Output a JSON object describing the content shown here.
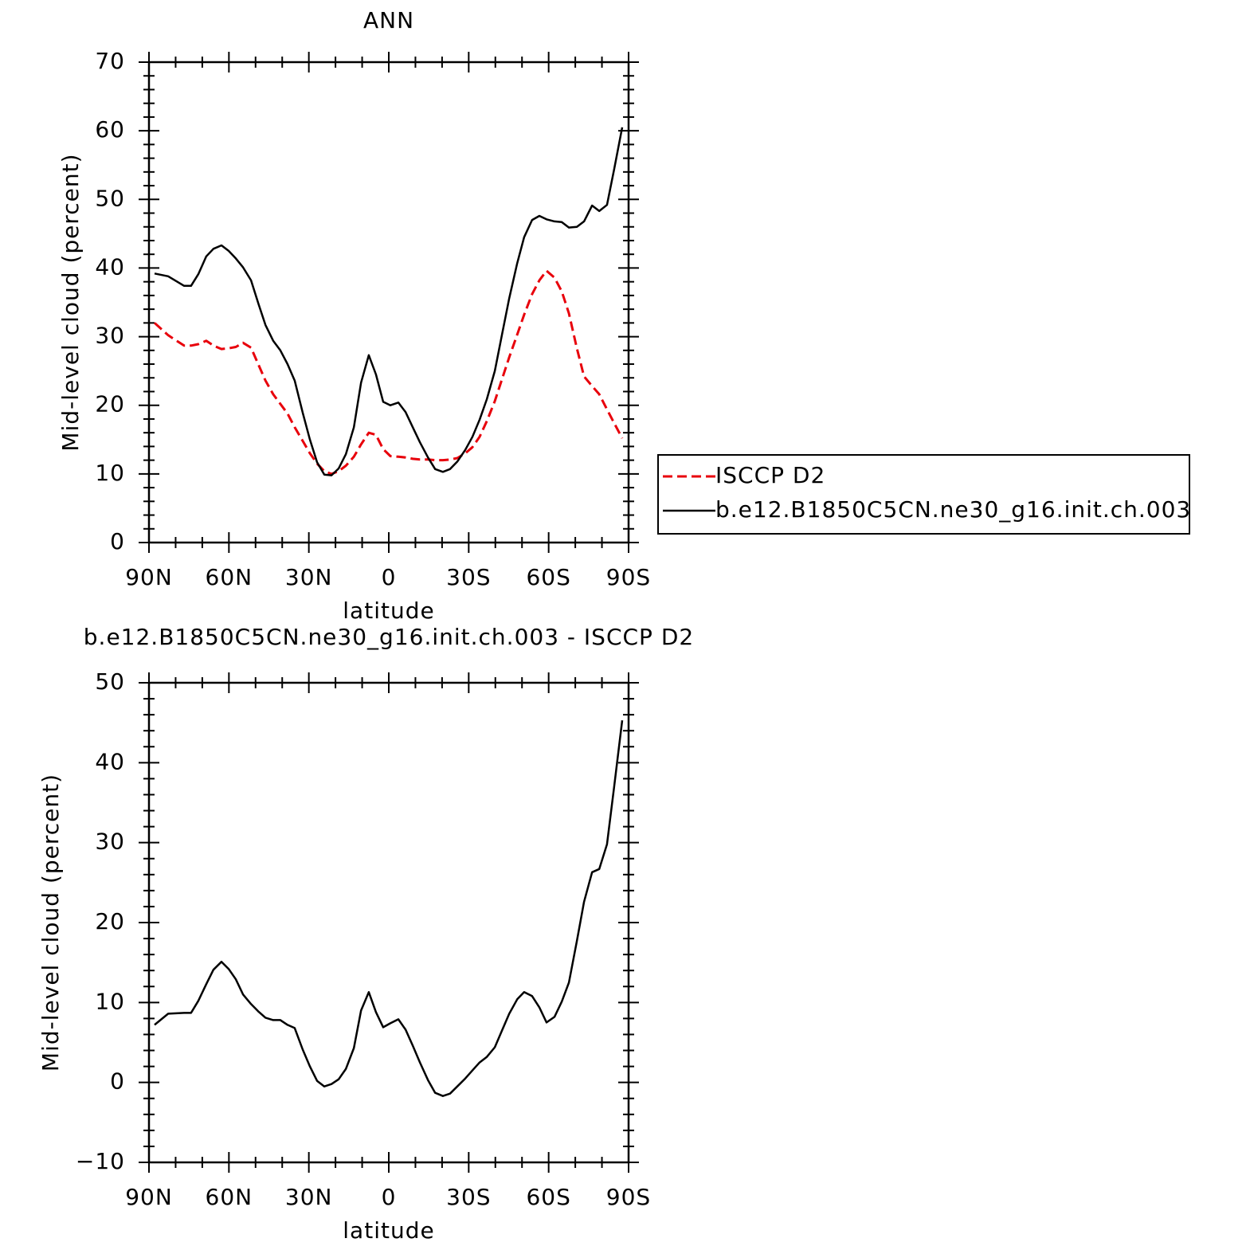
{
  "chart_data": [
    {
      "type": "line",
      "title": "ANN",
      "xlabel": "latitude",
      "ylabel": "Mid-level cloud (percent)",
      "x": [
        87.9,
        82.8,
        76.8,
        74.2,
        71.5,
        68.5,
        65.8,
        62.8,
        60.1,
        57.4,
        54.7,
        51.7,
        49.0,
        46.3,
        43.4,
        40.7,
        38.0,
        35.3,
        32.3,
        29.6,
        26.9,
        24.2,
        21.5,
        18.8,
        16.1,
        13.1,
        10.4,
        7.5,
        4.8,
        2.1,
        -0.6,
        -3.6,
        -6.3,
        -9.0,
        -11.7,
        -14.7,
        -17.4,
        -20.3,
        -23.0,
        -25.7,
        -28.7,
        -31.4,
        -34.1,
        -36.8,
        -39.8,
        -42.5,
        -45.2,
        -48.2,
        -50.8,
        -53.8,
        -56.5,
        -59.2,
        -62.2,
        -64.9,
        -67.6,
        -70.6,
        -73.3,
        -76.3,
        -79.0,
        -81.9,
        -84.6,
        -87.6
      ],
      "series": [
        {
          "name": "ISCCP D2",
          "color": "#e8000b",
          "dash": true,
          "values": [
            32.0,
            30.2,
            28.7,
            28.7,
            28.9,
            29.4,
            28.7,
            28.2,
            28.3,
            28.5,
            29.1,
            28.4,
            26.0,
            23.6,
            21.6,
            20.2,
            18.8,
            16.8,
            14.8,
            13.0,
            11.5,
            10.4,
            10.0,
            10.4,
            11.2,
            12.5,
            14.3,
            16.0,
            15.7,
            13.6,
            12.6,
            12.5,
            12.4,
            12.2,
            12.1,
            12.1,
            12.0,
            12.0,
            12.1,
            12.3,
            13.0,
            13.9,
            15.4,
            17.7,
            20.6,
            23.8,
            27.0,
            30.3,
            33.2,
            36.2,
            38.2,
            39.6,
            38.6,
            36.6,
            33.4,
            28.3,
            24.2,
            22.8,
            21.6,
            19.4,
            17.4,
            15.2
          ]
        },
        {
          "name": "b.e12.B1850C5CN.ne30_g16.init.ch.003",
          "color": "#000000",
          "dash": false,
          "values": [
            39.2,
            38.8,
            37.4,
            37.4,
            39.1,
            41.7,
            42.8,
            43.3,
            42.5,
            41.4,
            40.1,
            38.2,
            34.9,
            31.7,
            29.4,
            28.0,
            26.0,
            23.6,
            18.9,
            15.0,
            11.7,
            9.9,
            9.8,
            10.8,
            12.9,
            16.8,
            23.3,
            27.3,
            24.5,
            20.5,
            20.0,
            20.4,
            19.0,
            16.8,
            14.6,
            12.4,
            10.7,
            10.3,
            10.7,
            11.8,
            13.5,
            15.4,
            17.9,
            20.9,
            25.0,
            30.3,
            35.6,
            40.7,
            44.5,
            47.0,
            47.6,
            47.1,
            46.8,
            46.7,
            45.9,
            46.0,
            46.8,
            49.1,
            48.3,
            49.2,
            54.4,
            60.5
          ]
        }
      ],
      "xlim": [
        90,
        -90
      ],
      "xticks": [
        {
          "value": 90,
          "label": "90N"
        },
        {
          "value": 60,
          "label": "60N"
        },
        {
          "value": 30,
          "label": "30N"
        },
        0,
        {
          "value": -30,
          "label": "30S"
        },
        {
          "value": -60,
          "label": "60S"
        },
        {
          "value": -90,
          "label": "90S"
        }
      ],
      "ylim": [
        0,
        70
      ],
      "yticks": [
        0,
        10,
        20,
        30,
        40,
        50,
        60,
        70
      ],
      "legend": "right"
    },
    {
      "type": "line",
      "title": "b.e12.B1850C5CN.ne30_g16.init.ch.003 - ISCCP D2",
      "xlabel": "latitude",
      "ylabel": "Mid-level cloud (percent)",
      "x": [
        87.9,
        82.8,
        76.8,
        74.2,
        71.5,
        68.5,
        65.8,
        62.8,
        60.1,
        57.4,
        54.7,
        51.7,
        49.0,
        46.3,
        43.4,
        40.7,
        38.0,
        35.3,
        32.3,
        29.6,
        26.9,
        24.2,
        21.5,
        18.8,
        16.1,
        13.1,
        10.4,
        7.5,
        4.8,
        2.1,
        -0.6,
        -3.6,
        -6.3,
        -9.0,
        -11.7,
        -14.7,
        -17.4,
        -20.3,
        -23.0,
        -25.7,
        -28.7,
        -31.4,
        -34.1,
        -36.8,
        -39.8,
        -42.5,
        -45.2,
        -48.2,
        -50.8,
        -53.8,
        -56.5,
        -59.2,
        -62.2,
        -64.9,
        -67.6,
        -70.6,
        -73.3,
        -76.3,
        -79.0,
        -81.9,
        -84.6,
        -87.6
      ],
      "series": [
        {
          "color": "#000000",
          "dash": false,
          "values": [
            7.2,
            8.6,
            8.7,
            8.7,
            10.2,
            12.3,
            14.1,
            15.1,
            14.2,
            12.9,
            11.0,
            9.8,
            8.9,
            8.1,
            7.8,
            7.8,
            7.2,
            6.8,
            4.1,
            2.0,
            0.2,
            -0.5,
            -0.2,
            0.4,
            1.7,
            4.3,
            9.0,
            11.3,
            8.8,
            6.9,
            7.4,
            7.9,
            6.6,
            4.6,
            2.5,
            0.3,
            -1.3,
            -1.7,
            -1.4,
            -0.5,
            0.5,
            1.5,
            2.5,
            3.2,
            4.4,
            6.5,
            8.6,
            10.4,
            11.3,
            10.8,
            9.4,
            7.5,
            8.2,
            10.1,
            12.5,
            17.7,
            22.6,
            26.3,
            26.7,
            29.8,
            37.0,
            45.3
          ]
        }
      ],
      "xlim": [
        90,
        -90
      ],
      "xticks": [
        {
          "value": 90,
          "label": "90N"
        },
        {
          "value": 60,
          "label": "60N"
        },
        {
          "value": 30,
          "label": "30N"
        },
        0,
        {
          "value": -30,
          "label": "30S"
        },
        {
          "value": -60,
          "label": "60S"
        },
        {
          "value": -90,
          "label": "90S"
        }
      ],
      "ylim": [
        -10,
        50
      ],
      "yticks": [
        {
          "value": -10,
          "label": "−10"
        },
        0,
        10,
        20,
        30,
        40,
        50
      ]
    }
  ]
}
